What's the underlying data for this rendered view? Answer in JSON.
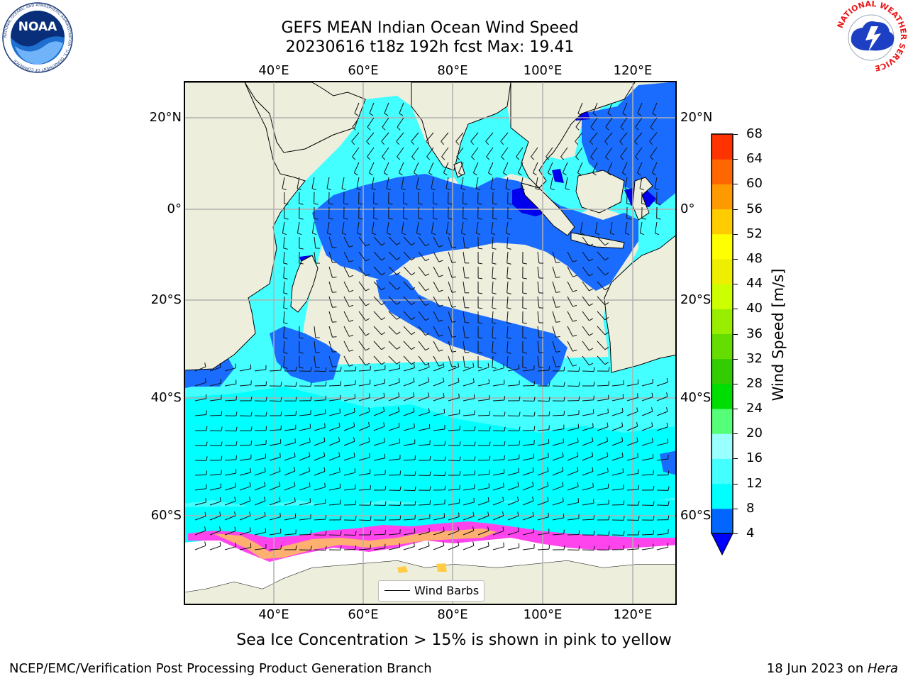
{
  "title": {
    "line1": "GEFS MEAN Indian Ocean Wind Speed",
    "line2": "20230616 t18z 192h fcst   Max: 19.41"
  },
  "map": {
    "region": "Indian Ocean",
    "lon_ticks_top": [
      "40°E",
      "60°E",
      "80°E",
      "100°E",
      "120°E"
    ],
    "lon_ticks_bottom": [
      "40°E",
      "60°E",
      "80°E",
      "100°E",
      "120°E"
    ],
    "lat_ticks_left": [
      "20°N",
      "0°",
      "20°S",
      "40°S",
      "60°S"
    ],
    "lat_ticks_right": [
      "20°N",
      "0°",
      "20°S",
      "40°S",
      "60°S"
    ],
    "legend_label": "Wind Barbs",
    "land_color": "#EEEEDD",
    "ice_colors": [
      "#FF00FF",
      "#FF99AA",
      "#FFCC33"
    ]
  },
  "colorbar": {
    "title": "Wind Speed [m/s]",
    "tick_labels": [
      "4",
      "8",
      "12",
      "16",
      "20",
      "24",
      "28",
      "32",
      "36",
      "40",
      "44",
      "48",
      "52",
      "56",
      "60",
      "64",
      "68"
    ],
    "colors": [
      "#0066FF",
      "#00FFFF",
      "#44FFFF",
      "#99FFFF",
      "#55FF77",
      "#00DD00",
      "#33CC00",
      "#66DD00",
      "#99EE00",
      "#CCFF00",
      "#EEEE00",
      "#FFFF00",
      "#FFCC00",
      "#FF9900",
      "#FF6600",
      "#FF3300",
      "#FF0000"
    ],
    "extend_color": "#0000FF"
  },
  "caption": "Sea Ice Concentration > 15% is shown in pink to yellow",
  "footer": {
    "left": "NCEP/EMC/Verification Post Processing Product Generation Branch",
    "date": "18 Jun 2023 on ",
    "host": "Hera"
  },
  "logos": {
    "noaa_text": "NOAA",
    "noaa_ring": "NATIONAL OCEANIC AND ATMOSPHERIC ADMINISTRATION · U.S. DEPARTMENT OF COMMERCE",
    "nws_ring": "NATIONAL WEATHER SERVICE"
  }
}
